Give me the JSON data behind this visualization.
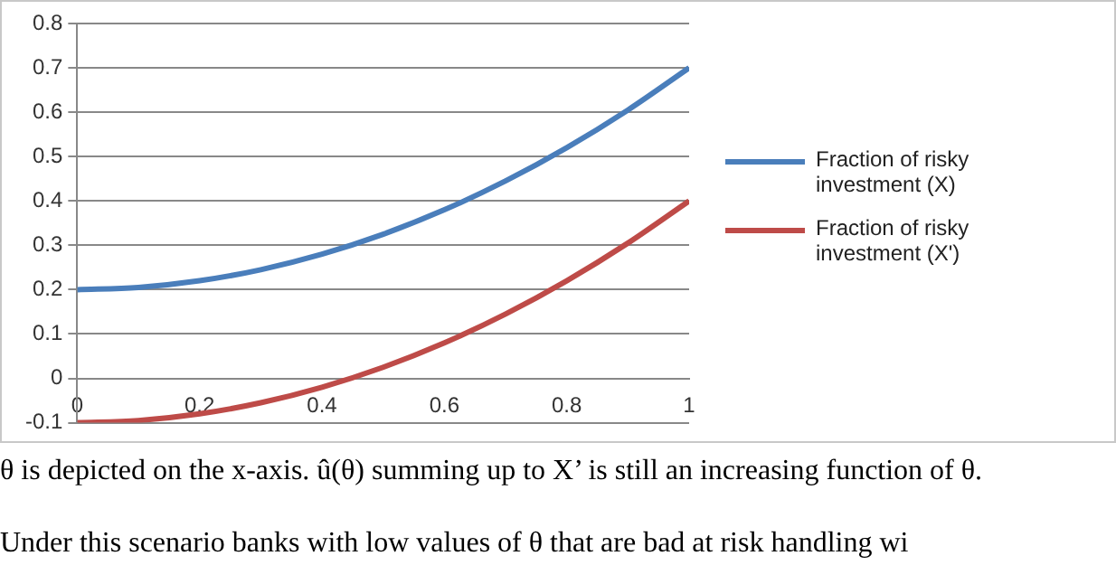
{
  "chart_data": {
    "type": "line",
    "x": [
      0,
      0.1,
      0.2,
      0.3,
      0.4,
      0.5,
      0.6,
      0.7,
      0.8,
      0.9,
      1
    ],
    "series": [
      {
        "name": "Fraction of risky investment (X)",
        "color": "#4a7ebb",
        "values": [
          0.2,
          0.205,
          0.22,
          0.245,
          0.28,
          0.325,
          0.38,
          0.445,
          0.52,
          0.605,
          0.7
        ]
      },
      {
        "name": "Fraction of risky investment (X')",
        "color": "#be4b48",
        "values": [
          -0.1,
          -0.095,
          -0.08,
          -0.055,
          -0.02,
          0.025,
          0.08,
          0.145,
          0.22,
          0.305,
          0.4
        ]
      }
    ],
    "xlim": [
      0,
      1
    ],
    "xticks": [
      0,
      0.2,
      0.4,
      0.6,
      0.8,
      1
    ],
    "ylim": [
      -0.1,
      0.8
    ],
    "yticks": [
      -0.1,
      0,
      0.1,
      0.2,
      0.3,
      0.4,
      0.5,
      0.6,
      0.7,
      0.8
    ],
    "grid": "y",
    "legend": "right",
    "marker": "none",
    "line_style": "solid",
    "annotations": [
      "θ is depicted on the x-axis. û(θ) summing up to X’ is still an increasing function of θ.",
      "Under this scenario banks with low values of θ that are bad at risk handling wi"
    ]
  }
}
